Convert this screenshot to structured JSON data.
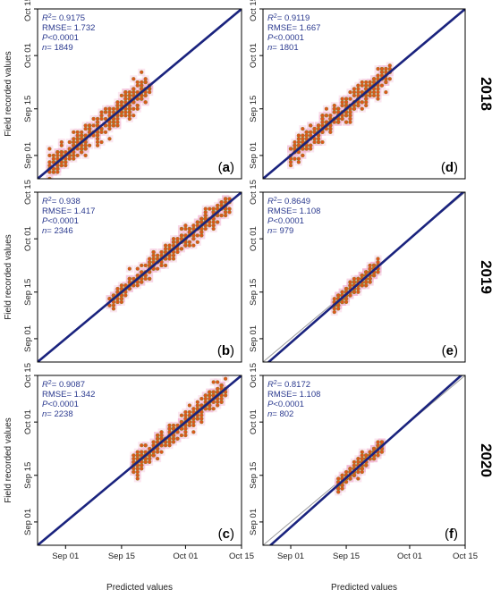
{
  "figure": {
    "x_axis_label": "Predicted values",
    "y_axis_label": "Field recorded values",
    "years": [
      "2018",
      "2019",
      "2020"
    ]
  },
  "colors": {
    "points": "#e2531b",
    "points_edge": "#8a8a2a",
    "halo": "#f4b7d4",
    "fit_line": "#1a237e",
    "identity_line": "#9a9a9a"
  },
  "chart_data": [
    {
      "type": "scatter",
      "panel": "a",
      "xlim": [
        "Aug 25",
        "Oct 15"
      ],
      "ylim": [
        "Aug 25",
        "Oct 15"
      ],
      "x_ticks": [
        "Sep 01",
        "Sep 15",
        "Oct 01",
        "Oct 15"
      ],
      "y_ticks": [
        "Sep 01",
        "Sep 15",
        "Oct 01",
        "Oct 15"
      ],
      "x_tick_days": [
        7,
        21,
        37,
        51
      ],
      "y_tick_days": [
        7,
        21,
        37,
        51
      ],
      "stats": {
        "r2": "= 0.9175",
        "rmse": "RMSE= 1.732",
        "p": "<0.0001",
        "n": "= 1849"
      },
      "cloud": {
        "x_range_days": [
          3,
          28
        ],
        "spread_days": 4.5,
        "count": 1849
      },
      "fit": {
        "slope": 1.0,
        "intercept": 0.0
      }
    },
    {
      "type": "scatter",
      "panel": "d",
      "xlim": [
        "Aug 25",
        "Oct 15"
      ],
      "ylim": [
        "Aug 25",
        "Oct 15"
      ],
      "x_ticks": [
        "Sep 01",
        "Sep 15",
        "Oct 01",
        "Oct 15"
      ],
      "y_ticks": [
        "Sep 01",
        "Sep 15",
        "Oct 01",
        "Oct 15"
      ],
      "x_tick_days": [
        7,
        21,
        37,
        51
      ],
      "y_tick_days": [
        7,
        21,
        37,
        51
      ],
      "stats": {
        "r2": "= 0.9119",
        "rmse": "RMSE= 1.667",
        "p": "<0.0001",
        "n": "= 1801"
      },
      "cloud": {
        "x_range_days": [
          7,
          32
        ],
        "spread_days": 4.0,
        "count": 1801
      },
      "fit": {
        "slope": 1.0,
        "intercept": 0.0
      }
    },
    {
      "type": "scatter",
      "panel": "b",
      "xlim": [
        "Aug 25",
        "Oct 15"
      ],
      "ylim": [
        "Aug 25",
        "Oct 15"
      ],
      "x_ticks": [
        "Sep 01",
        "Sep 15",
        "Oct 01",
        "Oct 15"
      ],
      "y_ticks": [
        "Sep 01",
        "Sep 15",
        "Oct 01",
        "Oct 15"
      ],
      "x_tick_days": [
        7,
        21,
        37,
        51
      ],
      "y_tick_days": [
        7,
        21,
        37,
        51
      ],
      "stats": {
        "r2": "= 0.938",
        "rmse": "RMSE= 1.417",
        "p": "<0.0001",
        "n": "= 2346"
      },
      "cloud": {
        "x_range_days": [
          18,
          48
        ],
        "spread_days": 3.5,
        "count": 2346
      },
      "fit": {
        "slope": 1.0,
        "intercept": 0.0
      }
    },
    {
      "type": "scatter",
      "panel": "e",
      "xlim": [
        "Aug 25",
        "Oct 15"
      ],
      "ylim": [
        "Aug 25",
        "Oct 15"
      ],
      "x_ticks": [
        "Sep 01",
        "Sep 15",
        "Oct 01",
        "Oct 15"
      ],
      "y_ticks": [
        "Sep 01",
        "Sep 15",
        "Oct 01",
        "Oct 15"
      ],
      "x_tick_days": [
        7,
        21,
        37,
        51
      ],
      "y_tick_days": [
        7,
        21,
        37,
        51
      ],
      "stats": {
        "r2": "= 0.8649",
        "rmse": "RMSE= 1.108",
        "p": "<0.0001",
        "n": "= 979"
      },
      "cloud": {
        "x_range_days": [
          18,
          29
        ],
        "spread_days": 2.0,
        "count": 979
      },
      "fit": {
        "slope": 1.04,
        "intercept": -1.5
      }
    },
    {
      "type": "scatter",
      "panel": "c",
      "xlim": [
        "Aug 25",
        "Oct 15"
      ],
      "ylim": [
        "Aug 25",
        "Oct 15"
      ],
      "x_ticks": [
        "Sep 01",
        "Sep 15",
        "Oct 01",
        "Oct 15"
      ],
      "y_ticks": [
        "Sep 01",
        "Sep 15",
        "Oct 01",
        "Oct 15"
      ],
      "x_tick_days": [
        7,
        21,
        37,
        51
      ],
      "y_tick_days": [
        7,
        21,
        37,
        51
      ],
      "stats": {
        "r2": "= 0.9087",
        "rmse": "RMSE= 1.342",
        "p": "<0.0001",
        "n": "= 2238"
      },
      "cloud": {
        "x_range_days": [
          24,
          47
        ],
        "spread_days": 3.5,
        "count": 2238
      },
      "fit": {
        "slope": 1.0,
        "intercept": 0.0
      }
    },
    {
      "type": "scatter",
      "panel": "f",
      "xlim": [
        "Aug 25",
        "Oct 15"
      ],
      "ylim": [
        "Aug 25",
        "Oct 15"
      ],
      "x_ticks": [
        "Sep 01",
        "Sep 15",
        "Oct 01",
        "Oct 15"
      ],
      "y_ticks": [
        "Sep 01",
        "Sep 15",
        "Oct 01",
        "Oct 15"
      ],
      "x_tick_days": [
        7,
        21,
        37,
        51
      ],
      "y_tick_days": [
        7,
        21,
        37,
        51
      ],
      "stats": {
        "r2": "= 0.8172",
        "rmse": "RMSE= 1.108",
        "p": "<0.0001",
        "n": "= 802"
      },
      "cloud": {
        "x_range_days": [
          19,
          30
        ],
        "spread_days": 2.0,
        "count": 802
      },
      "fit": {
        "slope": 1.06,
        "intercept": -2.0
      }
    }
  ]
}
